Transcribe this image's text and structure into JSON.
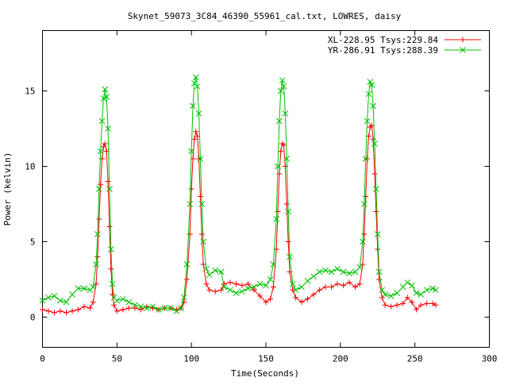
{
  "chart_data": {
    "type": "scatter",
    "title": "Skynet_59073_3C84_46390_55961_cal.txt, LOWRES, daisy",
    "xlabel": "Time(Seconds)",
    "ylabel": "Power (kelvin)",
    "xlim": [
      0,
      300
    ],
    "ylim": [
      -2,
      19
    ],
    "xticks": [
      0,
      50,
      100,
      150,
      200,
      250,
      300
    ],
    "yticks": [
      0,
      5,
      10,
      15
    ],
    "grid": false,
    "legend_position": "top-right",
    "series": [
      {
        "name": "XL-228.95 Tsys:229.84",
        "color": "#ff0000",
        "marker": "plus",
        "points": [
          [
            0,
            0.5
          ],
          [
            4,
            0.4
          ],
          [
            8,
            0.3
          ],
          [
            12,
            0.4
          ],
          [
            16,
            0.3
          ],
          [
            20,
            0.4
          ],
          [
            24,
            0.5
          ],
          [
            28,
            0.7
          ],
          [
            32,
            0.6
          ],
          [
            34,
            1.0
          ],
          [
            36,
            2.2
          ],
          [
            37,
            4.0
          ],
          [
            38,
            6.5
          ],
          [
            39,
            8.8
          ],
          [
            40,
            10.5
          ],
          [
            41,
            11.3
          ],
          [
            42,
            11.5
          ],
          [
            43,
            11.0
          ],
          [
            44,
            9.0
          ],
          [
            45,
            6.0
          ],
          [
            46,
            3.2
          ],
          [
            47,
            1.5
          ],
          [
            48,
            0.8
          ],
          [
            50,
            0.4
          ],
          [
            54,
            0.5
          ],
          [
            58,
            0.6
          ],
          [
            62,
            0.6
          ],
          [
            66,
            0.5
          ],
          [
            70,
            0.7
          ],
          [
            74,
            0.6
          ],
          [
            78,
            0.5
          ],
          [
            82,
            0.6
          ],
          [
            86,
            0.6
          ],
          [
            90,
            0.5
          ],
          [
            93,
            0.6
          ],
          [
            95,
            1.0
          ],
          [
            97,
            2.5
          ],
          [
            99,
            5.5
          ],
          [
            100,
            8.5
          ],
          [
            101,
            10.5
          ],
          [
            102,
            11.8
          ],
          [
            103,
            12.3
          ],
          [
            104,
            12.0
          ],
          [
            105,
            10.5
          ],
          [
            106,
            8.0
          ],
          [
            107,
            5.5
          ],
          [
            108,
            3.5
          ],
          [
            110,
            2.2
          ],
          [
            112,
            1.8
          ],
          [
            116,
            1.7
          ],
          [
            120,
            1.8
          ],
          [
            122,
            2.2
          ],
          [
            126,
            2.3
          ],
          [
            130,
            2.2
          ],
          [
            134,
            2.1
          ],
          [
            138,
            2.2
          ],
          [
            142,
            1.8
          ],
          [
            146,
            1.4
          ],
          [
            150,
            1.0
          ],
          [
            153,
            1.2
          ],
          [
            155,
            2.0
          ],
          [
            157,
            4.5
          ],
          [
            158,
            7.0
          ],
          [
            159,
            9.5
          ],
          [
            160,
            11.0
          ],
          [
            161,
            11.5
          ],
          [
            162,
            11.4
          ],
          [
            163,
            10.0
          ],
          [
            164,
            7.5
          ],
          [
            165,
            5.0
          ],
          [
            166,
            3.0
          ],
          [
            168,
            1.8
          ],
          [
            170,
            1.3
          ],
          [
            174,
            1.0
          ],
          [
            178,
            1.2
          ],
          [
            182,
            1.5
          ],
          [
            186,
            1.8
          ],
          [
            190,
            2.0
          ],
          [
            194,
            2.0
          ],
          [
            198,
            2.2
          ],
          [
            202,
            2.1
          ],
          [
            206,
            2.3
          ],
          [
            210,
            2.0
          ],
          [
            213,
            2.2
          ],
          [
            215,
            3.5
          ],
          [
            216,
            5.5
          ],
          [
            217,
            8.0
          ],
          [
            218,
            10.5
          ],
          [
            219,
            12.0
          ],
          [
            220,
            12.6
          ],
          [
            221,
            12.7
          ],
          [
            222,
            11.8
          ],
          [
            223,
            9.5
          ],
          [
            224,
            7.0
          ],
          [
            225,
            4.5
          ],
          [
            226,
            2.5
          ],
          [
            228,
            1.3
          ],
          [
            230,
            0.8
          ],
          [
            234,
            0.7
          ],
          [
            238,
            0.8
          ],
          [
            242,
            0.9
          ],
          [
            245,
            1.3
          ],
          [
            248,
            1.0
          ],
          [
            251,
            0.5
          ],
          [
            254,
            0.8
          ],
          [
            258,
            0.9
          ],
          [
            262,
            0.9
          ],
          [
            264,
            0.8
          ]
        ]
      },
      {
        "name": "YR-286.91 Tsys:288.39",
        "color": "#00c000",
        "marker": "cross",
        "points": [
          [
            0,
            1.1
          ],
          [
            4,
            1.3
          ],
          [
            8,
            1.4
          ],
          [
            12,
            1.1
          ],
          [
            16,
            1.0
          ],
          [
            20,
            1.5
          ],
          [
            24,
            1.9
          ],
          [
            28,
            1.9
          ],
          [
            32,
            1.8
          ],
          [
            34,
            2.0
          ],
          [
            36,
            3.5
          ],
          [
            37,
            5.5
          ],
          [
            38,
            8.5
          ],
          [
            39,
            11.0
          ],
          [
            40,
            13.0
          ],
          [
            41,
            14.5
          ],
          [
            42,
            15.1
          ],
          [
            43,
            14.6
          ],
          [
            44,
            12.5
          ],
          [
            45,
            8.5
          ],
          [
            46,
            4.5
          ],
          [
            47,
            2.2
          ],
          [
            48,
            1.3
          ],
          [
            50,
            1.1
          ],
          [
            54,
            1.2
          ],
          [
            58,
            1.0
          ],
          [
            62,
            0.8
          ],
          [
            66,
            0.7
          ],
          [
            70,
            0.6
          ],
          [
            74,
            0.7
          ],
          [
            78,
            0.5
          ],
          [
            82,
            0.6
          ],
          [
            86,
            0.6
          ],
          [
            90,
            0.4
          ],
          [
            93,
            0.6
          ],
          [
            95,
            1.3
          ],
          [
            97,
            3.5
          ],
          [
            99,
            7.5
          ],
          [
            100,
            11.0
          ],
          [
            101,
            14.0
          ],
          [
            102,
            15.5
          ],
          [
            103,
            15.9
          ],
          [
            104,
            15.3
          ],
          [
            105,
            13.5
          ],
          [
            106,
            10.5
          ],
          [
            107,
            7.5
          ],
          [
            108,
            5.0
          ],
          [
            110,
            3.2
          ],
          [
            112,
            2.8
          ],
          [
            116,
            3.1
          ],
          [
            120,
            3.0
          ],
          [
            122,
            2.0
          ],
          [
            126,
            1.8
          ],
          [
            130,
            1.6
          ],
          [
            134,
            1.7
          ],
          [
            138,
            1.9
          ],
          [
            142,
            2.0
          ],
          [
            146,
            2.2
          ],
          [
            150,
            2.1
          ],
          [
            153,
            2.5
          ],
          [
            155,
            3.5
          ],
          [
            157,
            6.5
          ],
          [
            158,
            10.0
          ],
          [
            159,
            13.0
          ],
          [
            160,
            15.0
          ],
          [
            161,
            15.7
          ],
          [
            162,
            15.3
          ],
          [
            163,
            13.5
          ],
          [
            164,
            10.5
          ],
          [
            165,
            7.0
          ],
          [
            166,
            4.0
          ],
          [
            168,
            2.2
          ],
          [
            170,
            1.8
          ],
          [
            174,
            2.0
          ],
          [
            178,
            2.4
          ],
          [
            182,
            2.7
          ],
          [
            186,
            3.0
          ],
          [
            190,
            3.1
          ],
          [
            194,
            3.0
          ],
          [
            198,
            3.2
          ],
          [
            202,
            3.0
          ],
          [
            206,
            2.9
          ],
          [
            210,
            3.0
          ],
          [
            213,
            3.3
          ],
          [
            215,
            5.0
          ],
          [
            216,
            7.5
          ],
          [
            217,
            10.5
          ],
          [
            218,
            13.0
          ],
          [
            219,
            14.8
          ],
          [
            220,
            15.6
          ],
          [
            221,
            15.4
          ],
          [
            222,
            14.0
          ],
          [
            223,
            11.5
          ],
          [
            224,
            8.5
          ],
          [
            225,
            5.5
          ],
          [
            226,
            3.0
          ],
          [
            228,
            1.8
          ],
          [
            230,
            1.5
          ],
          [
            234,
            1.4
          ],
          [
            238,
            1.6
          ],
          [
            242,
            2.0
          ],
          [
            245,
            2.3
          ],
          [
            248,
            2.1
          ],
          [
            251,
            1.6
          ],
          [
            254,
            1.5
          ],
          [
            258,
            1.8
          ],
          [
            262,
            1.9
          ],
          [
            264,
            1.8
          ]
        ]
      }
    ]
  }
}
